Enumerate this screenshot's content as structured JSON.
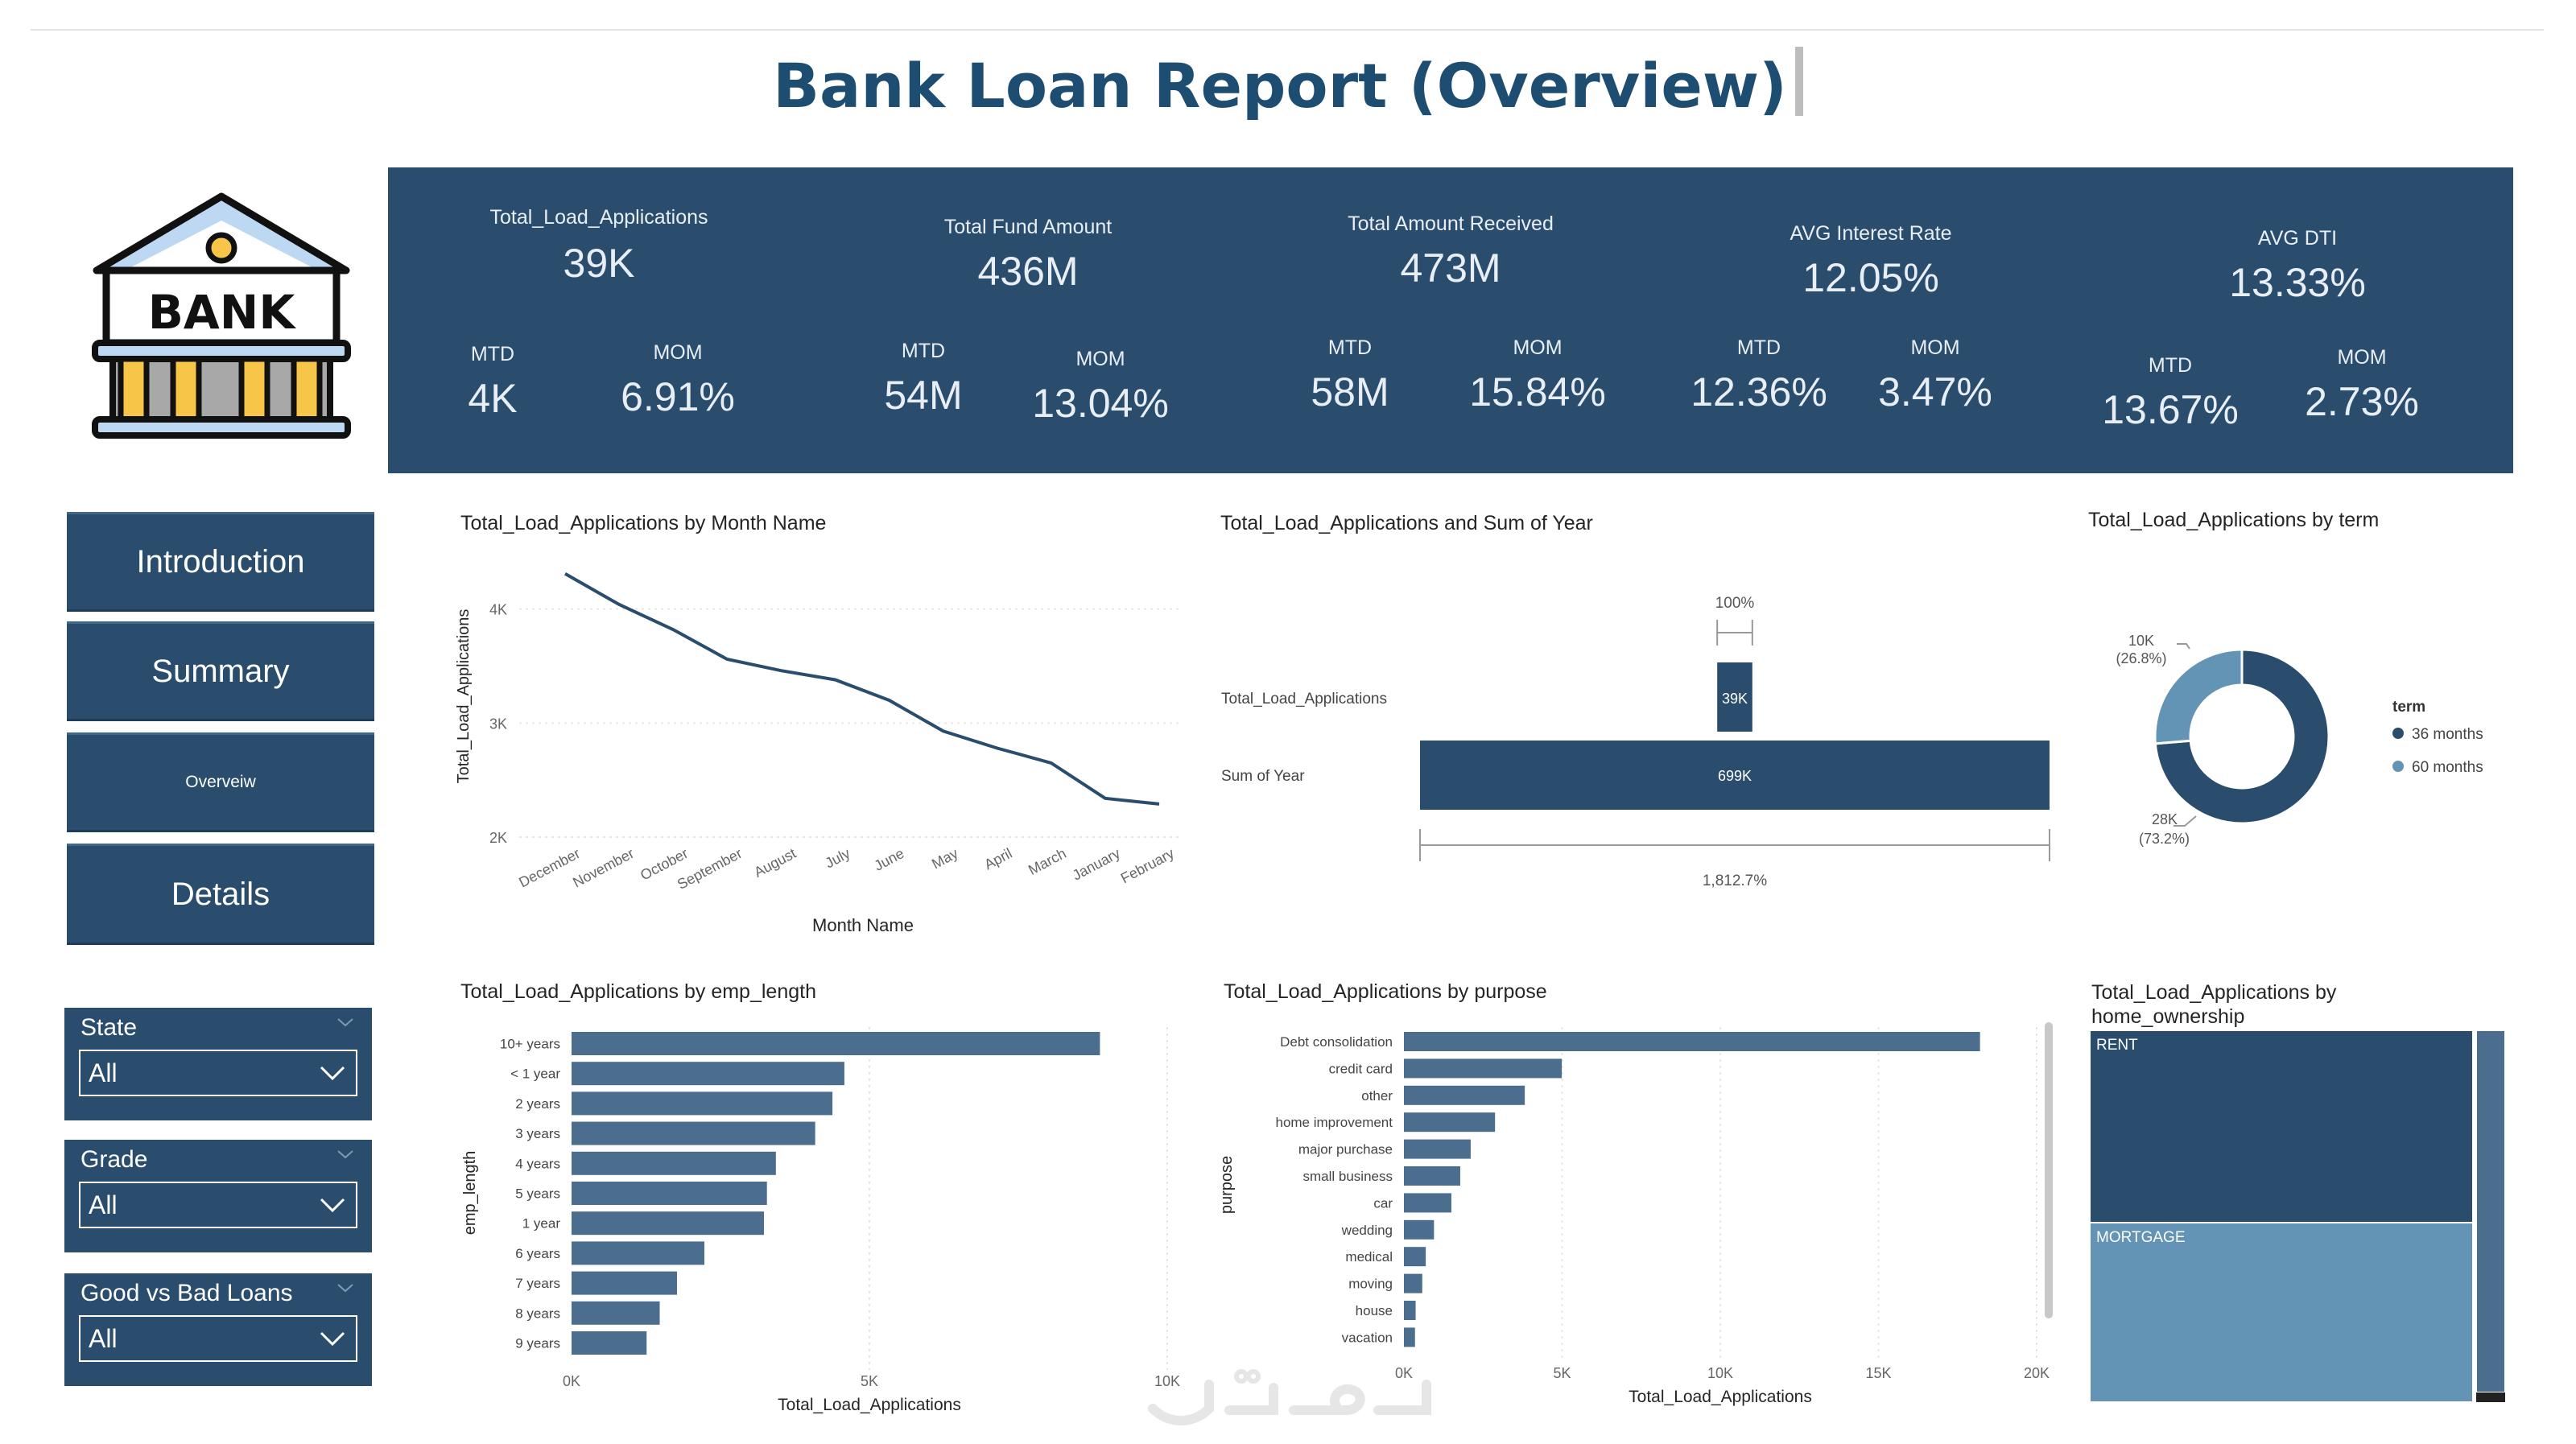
{
  "report": {
    "title": "Bank Loan Report (Overview)"
  },
  "logo": {
    "text": "BANK"
  },
  "kpis": [
    {
      "title": "Total_Load_Applications",
      "value": "39K",
      "mtd_label": "MTD",
      "mtd": "4K",
      "mom_label": "MOM",
      "mom": "6.91%"
    },
    {
      "title": "Total Fund Amount",
      "value": "436M",
      "mtd_label": "MTD",
      "mtd": "54M",
      "mom_label": "MOM",
      "mom": "13.04%"
    },
    {
      "title": "Total Amount Received",
      "value": "473M",
      "mtd_label": "MTD",
      "mtd": "58M",
      "mom_label": "MOM",
      "mom": "15.84%"
    },
    {
      "title": "AVG Interest Rate",
      "value": "12.05%",
      "mtd_label": "MTD",
      "mtd": "12.36%",
      "mom_label": "MOM",
      "mom": "3.47%"
    },
    {
      "title": "AVG DTI",
      "value": "13.33%",
      "mtd_label": "MTD",
      "mtd": "13.67%",
      "mom_label": "MOM",
      "mom": "2.73%"
    }
  ],
  "nav": {
    "introduction": "Introduction",
    "summary": "Summary",
    "overview": "Overveiw",
    "details": "Details"
  },
  "slicers": [
    {
      "label": "State",
      "value": "All"
    },
    {
      "label": "Grade",
      "value": "All"
    },
    {
      "label": "Good vs Bad Loans",
      "value": "All"
    }
  ],
  "colors": {
    "primary": "#2a4d6e",
    "secondary": "#6393b5",
    "bar": "#4b6e8e"
  },
  "chart_data": [
    {
      "id": "month",
      "type": "line",
      "title": "Total_Load_Applications by Month Name",
      "xlabel": "Month Name",
      "ylabel": "Total_Load_Applications",
      "categories": [
        "December",
        "November",
        "October",
        "September",
        "August",
        "July",
        "June",
        "May",
        "April",
        "March",
        "January",
        "February"
      ],
      "values": [
        4310,
        4040,
        3820,
        3560,
        3460,
        3380,
        3200,
        2930,
        2780,
        2650,
        2340,
        2290
      ],
      "ylim": [
        2000,
        4000
      ],
      "yticks": [
        "2K",
        "3K",
        "4K"
      ],
      "grid": true
    },
    {
      "id": "year",
      "type": "bar",
      "title": "Total_Load_Applications and Sum of Year",
      "categories": [
        "Total_Load_Applications",
        "Sum of Year"
      ],
      "values": [
        39,
        699
      ],
      "data_labels": [
        "39K",
        "699K"
      ],
      "annotations": [
        "100%",
        "1,812.7%"
      ]
    },
    {
      "id": "term",
      "type": "pie",
      "title": "Total_Load_Applications by term",
      "legend_title": "term",
      "legend": "right",
      "labels": [
        "36 months",
        "60 months"
      ],
      "values": [
        28,
        10
      ],
      "data_labels": [
        [
          "28K",
          "(73.2%)"
        ],
        [
          "10K",
          "(26.8%)"
        ]
      ]
    },
    {
      "id": "emp",
      "type": "bar",
      "title": "Total_Load_Applications by emp_length",
      "xlabel": "Total_Load_Applications",
      "ylabel": "emp_length",
      "categories": [
        "10+ years",
        "< 1 year",
        "2 years",
        "3 years",
        "4 years",
        "5 years",
        "1 year",
        "6 years",
        "7 years",
        "8 years",
        "9 years"
      ],
      "values": [
        8870,
        4580,
        4380,
        4090,
        3430,
        3280,
        3230,
        2230,
        1770,
        1480,
        1260
      ],
      "xlim": [
        0,
        10000
      ],
      "xticks": [
        "0K",
        "5K",
        "10K"
      ]
    },
    {
      "id": "purpose",
      "type": "bar",
      "title": "Total_Load_Applications by purpose",
      "xlabel": "Total_Load_Applications",
      "ylabel": "purpose",
      "categories": [
        "Debt consolidation",
        "credit card",
        "other",
        "home improvement",
        "major purchase",
        "small business",
        "car",
        "wedding",
        "medical",
        "moving",
        "house",
        "vacation"
      ],
      "values": [
        18210,
        4990,
        3820,
        2880,
        2110,
        1780,
        1500,
        950,
        690,
        580,
        370,
        350
      ],
      "xlim": [
        0,
        20000
      ],
      "xticks": [
        "0K",
        "5K",
        "10K",
        "15K",
        "20K"
      ]
    },
    {
      "id": "home",
      "type": "heatmap",
      "title": "Total_Load_Applications by home_ownership",
      "categories": [
        "RENT",
        "MORTGAGE"
      ],
      "values": [
        18439,
        17198
      ]
    }
  ]
}
